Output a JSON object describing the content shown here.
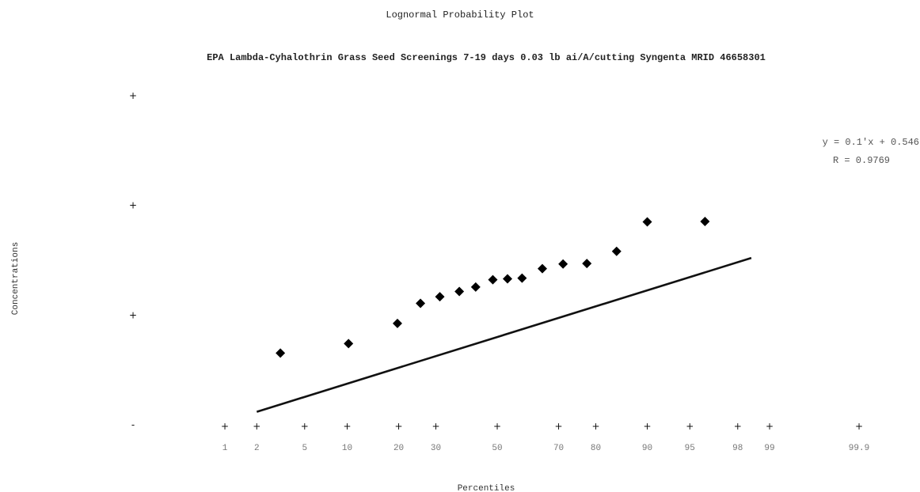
{
  "chart_data": {
    "type": "scatter",
    "title": "Lognormal Probability Plot",
    "subtitle": "EPA Lambda-Cyhalothrin Grass Seed Screenings 7-19 days 0.03 lb ai/A/cutting Syngenta MRID 46658301",
    "xlabel": "Percentiles",
    "ylabel": "Concentrations",
    "x_ticks": [
      "1",
      "2",
      "5",
      "10",
      "20",
      "30",
      "50",
      "70",
      "80",
      "90",
      "95",
      "98",
      "99",
      "99.9"
    ],
    "y_ticks": [
      "",
      "",
      "",
      ""
    ],
    "series": [
      {
        "points": [
          {
            "x": 3.2,
            "y": 0.45
          },
          {
            "x": 10.2,
            "y": 0.55
          },
          {
            "x": 19.7,
            "y": 0.84
          },
          {
            "x": 25.6,
            "y": 1.28
          },
          {
            "x": 31.2,
            "y": 1.47
          },
          {
            "x": 37.3,
            "y": 1.64
          },
          {
            "x": 42.7,
            "y": 1.8
          },
          {
            "x": 48.5,
            "y": 2.1
          },
          {
            "x": 53.5,
            "y": 2.14
          },
          {
            "x": 58.4,
            "y": 2.17
          },
          {
            "x": 65.0,
            "y": 2.65
          },
          {
            "x": 71.3,
            "y": 2.92
          },
          {
            "x": 77.8,
            "y": 2.95
          },
          {
            "x": 84.6,
            "y": 3.81
          },
          {
            "x": 90.0,
            "y": 7.08
          },
          {
            "x": 96.2,
            "y": 7.13
          }
        ]
      }
    ],
    "fit_line": {
      "slope": 0.1,
      "intercept": 0.546,
      "x_from": 2,
      "x_to": 98.5
    },
    "annotations": [
      "y = 0.1'x + 0.546",
      "R = 0.9769"
    ]
  }
}
